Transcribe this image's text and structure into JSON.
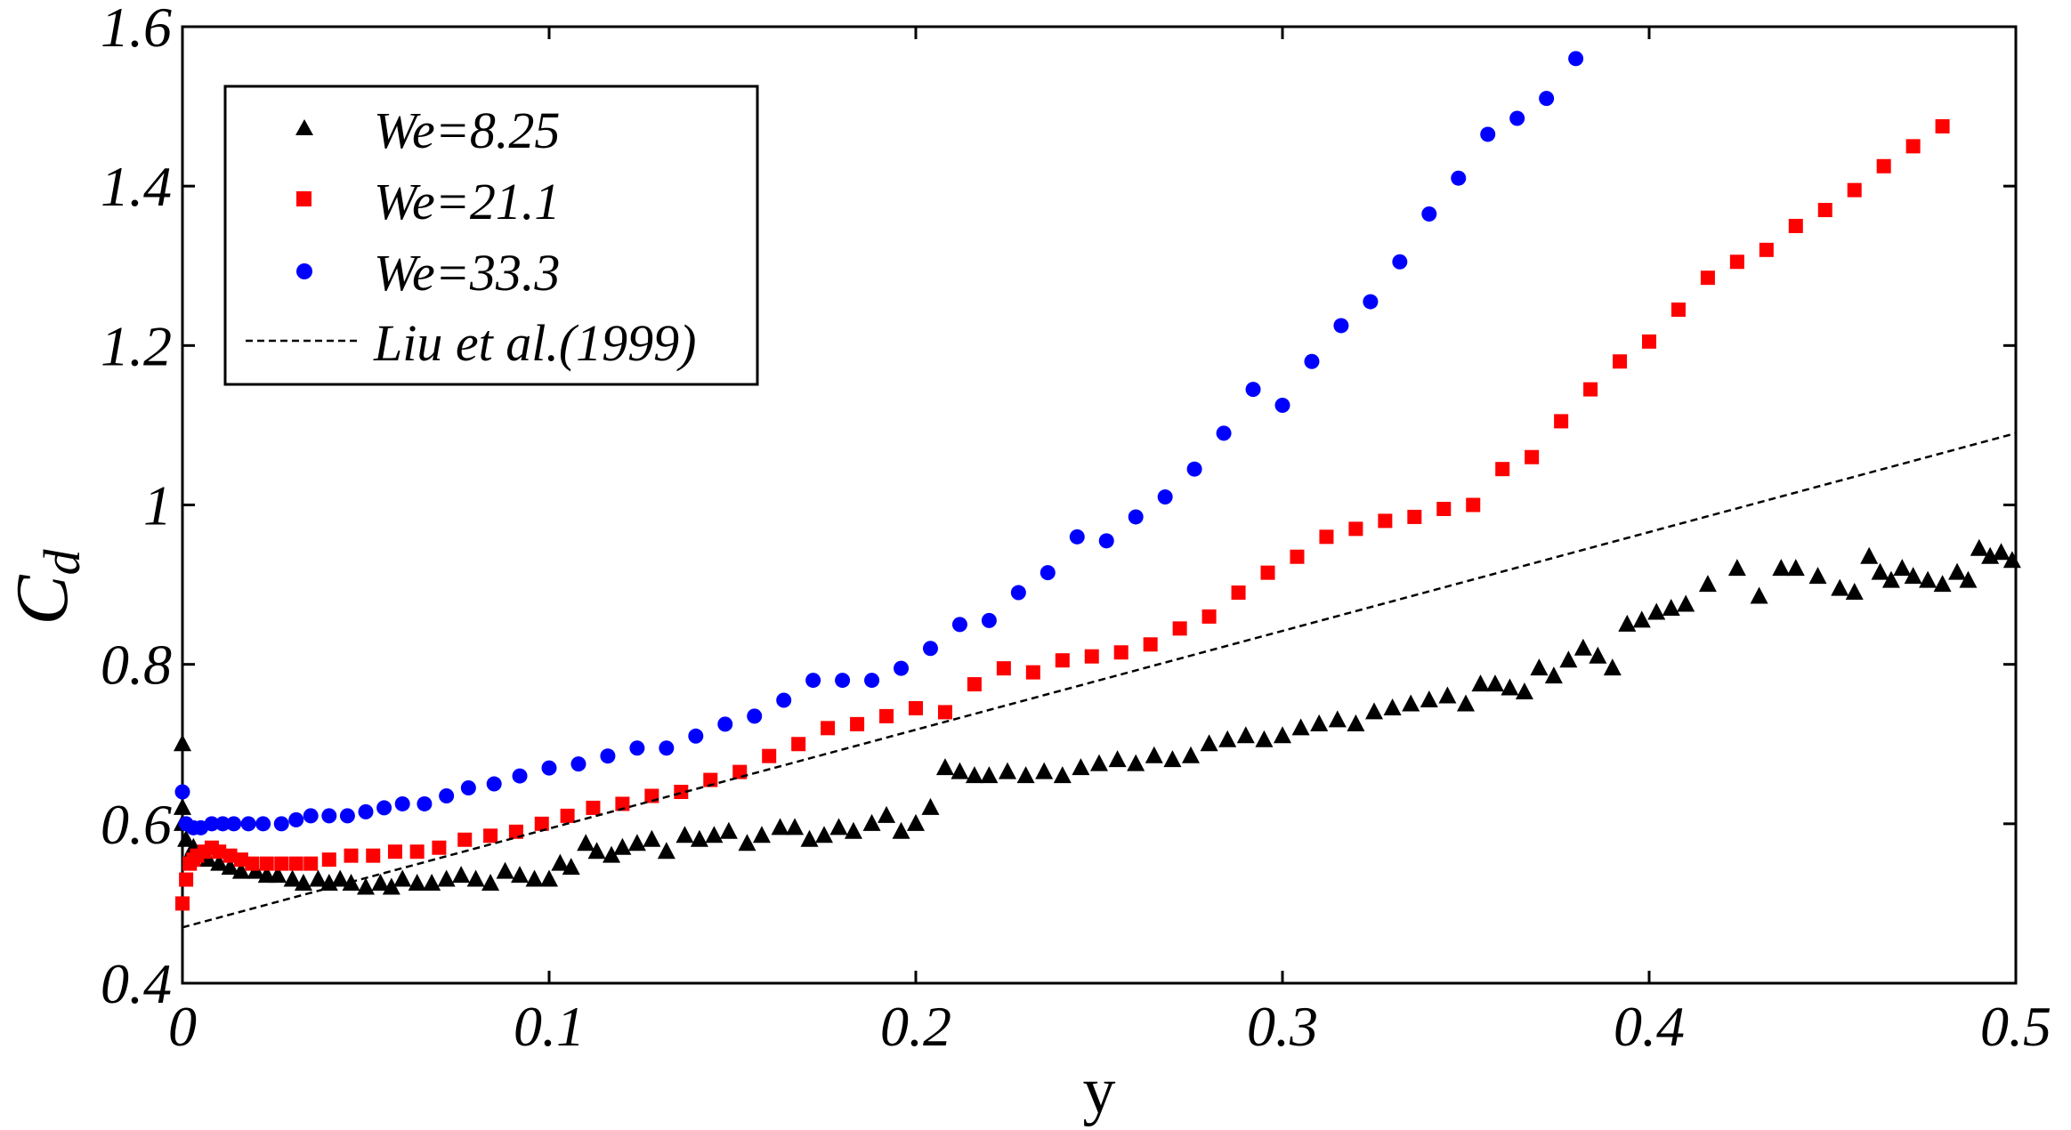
{
  "chart_data": {
    "type": "scatter",
    "title": "",
    "xlabel": "y",
    "ylabel": "C",
    "ylabel_sub": "d",
    "xlim": [
      0,
      0.5
    ],
    "ylim": [
      0.4,
      1.6
    ],
    "x_ticks": [
      "0",
      "0.1",
      "0.2",
      "0.3",
      "0.4",
      "0.5"
    ],
    "y_ticks": [
      "0.4",
      "0.6",
      "0.8",
      "1",
      "1.2",
      "1.4",
      "1.6"
    ],
    "legend_position": "top-left",
    "series": [
      {
        "name": "We=8.25",
        "marker": "triangle",
        "color": "#000000",
        "points": [
          [
            0.0,
            0.7
          ],
          [
            0.0,
            0.62
          ],
          [
            0.0,
            0.6
          ],
          [
            0.001,
            0.58
          ],
          [
            0.002,
            0.56
          ],
          [
            0.003,
            0.57
          ],
          [
            0.005,
            0.56
          ],
          [
            0.007,
            0.555
          ],
          [
            0.01,
            0.55
          ],
          [
            0.013,
            0.545
          ],
          [
            0.016,
            0.54
          ],
          [
            0.02,
            0.54
          ],
          [
            0.023,
            0.535
          ],
          [
            0.026,
            0.535
          ],
          [
            0.03,
            0.53
          ],
          [
            0.033,
            0.525
          ],
          [
            0.037,
            0.53
          ],
          [
            0.04,
            0.525
          ],
          [
            0.043,
            0.53
          ],
          [
            0.046,
            0.525
          ],
          [
            0.05,
            0.52
          ],
          [
            0.054,
            0.525
          ],
          [
            0.057,
            0.52
          ],
          [
            0.06,
            0.53
          ],
          [
            0.064,
            0.525
          ],
          [
            0.068,
            0.525
          ],
          [
            0.072,
            0.53
          ],
          [
            0.076,
            0.535
          ],
          [
            0.08,
            0.53
          ],
          [
            0.084,
            0.525
          ],
          [
            0.088,
            0.54
          ],
          [
            0.092,
            0.535
          ],
          [
            0.096,
            0.53
          ],
          [
            0.1,
            0.53
          ],
          [
            0.103,
            0.55
          ],
          [
            0.106,
            0.545
          ],
          [
            0.11,
            0.575
          ],
          [
            0.113,
            0.565
          ],
          [
            0.117,
            0.56
          ],
          [
            0.12,
            0.57
          ],
          [
            0.124,
            0.575
          ],
          [
            0.128,
            0.58
          ],
          [
            0.132,
            0.565
          ],
          [
            0.137,
            0.585
          ],
          [
            0.141,
            0.58
          ],
          [
            0.145,
            0.585
          ],
          [
            0.149,
            0.59
          ],
          [
            0.154,
            0.575
          ],
          [
            0.158,
            0.585
          ],
          [
            0.163,
            0.595
          ],
          [
            0.167,
            0.595
          ],
          [
            0.171,
            0.58
          ],
          [
            0.175,
            0.585
          ],
          [
            0.179,
            0.595
          ],
          [
            0.183,
            0.59
          ],
          [
            0.188,
            0.6
          ],
          [
            0.192,
            0.61
          ],
          [
            0.196,
            0.59
          ],
          [
            0.2,
            0.6
          ],
          [
            0.204,
            0.62
          ],
          [
            0.208,
            0.67
          ],
          [
            0.212,
            0.665
          ],
          [
            0.216,
            0.66
          ],
          [
            0.22,
            0.66
          ],
          [
            0.225,
            0.665
          ],
          [
            0.23,
            0.66
          ],
          [
            0.235,
            0.665
          ],
          [
            0.24,
            0.66
          ],
          [
            0.245,
            0.67
          ],
          [
            0.25,
            0.675
          ],
          [
            0.255,
            0.68
          ],
          [
            0.26,
            0.675
          ],
          [
            0.265,
            0.685
          ],
          [
            0.27,
            0.68
          ],
          [
            0.275,
            0.685
          ],
          [
            0.28,
            0.7
          ],
          [
            0.285,
            0.705
          ],
          [
            0.29,
            0.71
          ],
          [
            0.295,
            0.705
          ],
          [
            0.3,
            0.71
          ],
          [
            0.305,
            0.72
          ],
          [
            0.31,
            0.725
          ],
          [
            0.315,
            0.73
          ],
          [
            0.32,
            0.725
          ],
          [
            0.325,
            0.74
          ],
          [
            0.33,
            0.745
          ],
          [
            0.335,
            0.75
          ],
          [
            0.34,
            0.755
          ],
          [
            0.345,
            0.76
          ],
          [
            0.35,
            0.75
          ],
          [
            0.354,
            0.775
          ],
          [
            0.358,
            0.775
          ],
          [
            0.362,
            0.77
          ],
          [
            0.366,
            0.765
          ],
          [
            0.37,
            0.795
          ],
          [
            0.374,
            0.785
          ],
          [
            0.378,
            0.805
          ],
          [
            0.382,
            0.82
          ],
          [
            0.386,
            0.81
          ],
          [
            0.39,
            0.795
          ],
          [
            0.394,
            0.85
          ],
          [
            0.398,
            0.855
          ],
          [
            0.402,
            0.865
          ],
          [
            0.406,
            0.87
          ],
          [
            0.41,
            0.875
          ],
          [
            0.416,
            0.9
          ],
          [
            0.424,
            0.92
          ],
          [
            0.43,
            0.885
          ],
          [
            0.436,
            0.92
          ],
          [
            0.44,
            0.92
          ],
          [
            0.446,
            0.91
          ],
          [
            0.452,
            0.895
          ],
          [
            0.456,
            0.89
          ],
          [
            0.46,
            0.935
          ],
          [
            0.463,
            0.915
          ],
          [
            0.466,
            0.905
          ],
          [
            0.469,
            0.92
          ],
          [
            0.472,
            0.91
          ],
          [
            0.476,
            0.905
          ],
          [
            0.48,
            0.9
          ],
          [
            0.484,
            0.915
          ],
          [
            0.487,
            0.905
          ],
          [
            0.49,
            0.945
          ],
          [
            0.493,
            0.935
          ],
          [
            0.496,
            0.94
          ],
          [
            0.499,
            0.93
          ]
        ]
      },
      {
        "name": "We=21.1",
        "marker": "square",
        "color": "#ff0000",
        "points": [
          [
            0.0,
            0.5
          ],
          [
            0.001,
            0.53
          ],
          [
            0.002,
            0.55
          ],
          [
            0.003,
            0.555
          ],
          [
            0.004,
            0.56
          ],
          [
            0.006,
            0.565
          ],
          [
            0.008,
            0.57
          ],
          [
            0.01,
            0.565
          ],
          [
            0.013,
            0.56
          ],
          [
            0.016,
            0.555
          ],
          [
            0.019,
            0.55
          ],
          [
            0.023,
            0.55
          ],
          [
            0.027,
            0.55
          ],
          [
            0.031,
            0.55
          ],
          [
            0.035,
            0.55
          ],
          [
            0.04,
            0.555
          ],
          [
            0.046,
            0.56
          ],
          [
            0.052,
            0.56
          ],
          [
            0.058,
            0.565
          ],
          [
            0.064,
            0.565
          ],
          [
            0.07,
            0.57
          ],
          [
            0.077,
            0.58
          ],
          [
            0.084,
            0.585
          ],
          [
            0.091,
            0.59
          ],
          [
            0.098,
            0.6
          ],
          [
            0.105,
            0.61
          ],
          [
            0.112,
            0.62
          ],
          [
            0.12,
            0.625
          ],
          [
            0.128,
            0.635
          ],
          [
            0.136,
            0.64
          ],
          [
            0.144,
            0.655
          ],
          [
            0.152,
            0.665
          ],
          [
            0.16,
            0.685
          ],
          [
            0.168,
            0.7
          ],
          [
            0.176,
            0.72
          ],
          [
            0.184,
            0.725
          ],
          [
            0.192,
            0.735
          ],
          [
            0.2,
            0.745
          ],
          [
            0.208,
            0.74
          ],
          [
            0.216,
            0.775
          ],
          [
            0.224,
            0.795
          ],
          [
            0.232,
            0.79
          ],
          [
            0.24,
            0.805
          ],
          [
            0.248,
            0.81
          ],
          [
            0.256,
            0.815
          ],
          [
            0.264,
            0.825
          ],
          [
            0.272,
            0.845
          ],
          [
            0.28,
            0.86
          ],
          [
            0.288,
            0.89
          ],
          [
            0.296,
            0.915
          ],
          [
            0.304,
            0.935
          ],
          [
            0.312,
            0.96
          ],
          [
            0.32,
            0.97
          ],
          [
            0.328,
            0.98
          ],
          [
            0.336,
            0.985
          ],
          [
            0.344,
            0.995
          ],
          [
            0.352,
            1.0
          ],
          [
            0.36,
            1.045
          ],
          [
            0.368,
            1.06
          ],
          [
            0.376,
            1.105
          ],
          [
            0.384,
            1.145
          ],
          [
            0.392,
            1.18
          ],
          [
            0.4,
            1.205
          ],
          [
            0.408,
            1.245
          ],
          [
            0.416,
            1.285
          ],
          [
            0.424,
            1.305
          ],
          [
            0.432,
            1.32
          ],
          [
            0.44,
            1.35
          ],
          [
            0.448,
            1.37
          ],
          [
            0.456,
            1.395
          ],
          [
            0.464,
            1.425
          ],
          [
            0.472,
            1.45
          ],
          [
            0.48,
            1.475
          ]
        ]
      },
      {
        "name": "We=33.3",
        "marker": "circle",
        "color": "#0000ff",
        "points": [
          [
            0.0,
            0.64
          ],
          [
            0.001,
            0.6
          ],
          [
            0.003,
            0.595
          ],
          [
            0.005,
            0.595
          ],
          [
            0.008,
            0.6
          ],
          [
            0.011,
            0.6
          ],
          [
            0.014,
            0.6
          ],
          [
            0.018,
            0.6
          ],
          [
            0.022,
            0.6
          ],
          [
            0.027,
            0.6
          ],
          [
            0.031,
            0.605
          ],
          [
            0.035,
            0.61
          ],
          [
            0.04,
            0.61
          ],
          [
            0.045,
            0.61
          ],
          [
            0.05,
            0.615
          ],
          [
            0.055,
            0.62
          ],
          [
            0.06,
            0.625
          ],
          [
            0.066,
            0.625
          ],
          [
            0.072,
            0.635
          ],
          [
            0.078,
            0.645
          ],
          [
            0.085,
            0.65
          ],
          [
            0.092,
            0.66
          ],
          [
            0.1,
            0.67
          ],
          [
            0.108,
            0.675
          ],
          [
            0.116,
            0.685
          ],
          [
            0.124,
            0.695
          ],
          [
            0.132,
            0.695
          ],
          [
            0.14,
            0.71
          ],
          [
            0.148,
            0.725
          ],
          [
            0.156,
            0.735
          ],
          [
            0.164,
            0.755
          ],
          [
            0.172,
            0.78
          ],
          [
            0.18,
            0.78
          ],
          [
            0.188,
            0.78
          ],
          [
            0.196,
            0.795
          ],
          [
            0.204,
            0.82
          ],
          [
            0.212,
            0.85
          ],
          [
            0.22,
            0.855
          ],
          [
            0.228,
            0.89
          ],
          [
            0.236,
            0.915
          ],
          [
            0.244,
            0.96
          ],
          [
            0.252,
            0.955
          ],
          [
            0.26,
            0.985
          ],
          [
            0.268,
            1.01
          ],
          [
            0.276,
            1.045
          ],
          [
            0.284,
            1.09
          ],
          [
            0.292,
            1.145
          ],
          [
            0.3,
            1.125
          ],
          [
            0.308,
            1.18
          ],
          [
            0.316,
            1.225
          ],
          [
            0.324,
            1.255
          ],
          [
            0.332,
            1.305
          ],
          [
            0.34,
            1.365
          ],
          [
            0.348,
            1.41
          ],
          [
            0.356,
            1.465
          ],
          [
            0.364,
            1.485
          ],
          [
            0.372,
            1.51
          ],
          [
            0.38,
            1.56
          ]
        ]
      },
      {
        "name": "Liu et al.(1999)",
        "marker": "dashed-line",
        "color": "#000000",
        "points": [
          [
            0.0,
            0.47
          ],
          [
            0.5,
            1.09
          ]
        ]
      }
    ]
  }
}
